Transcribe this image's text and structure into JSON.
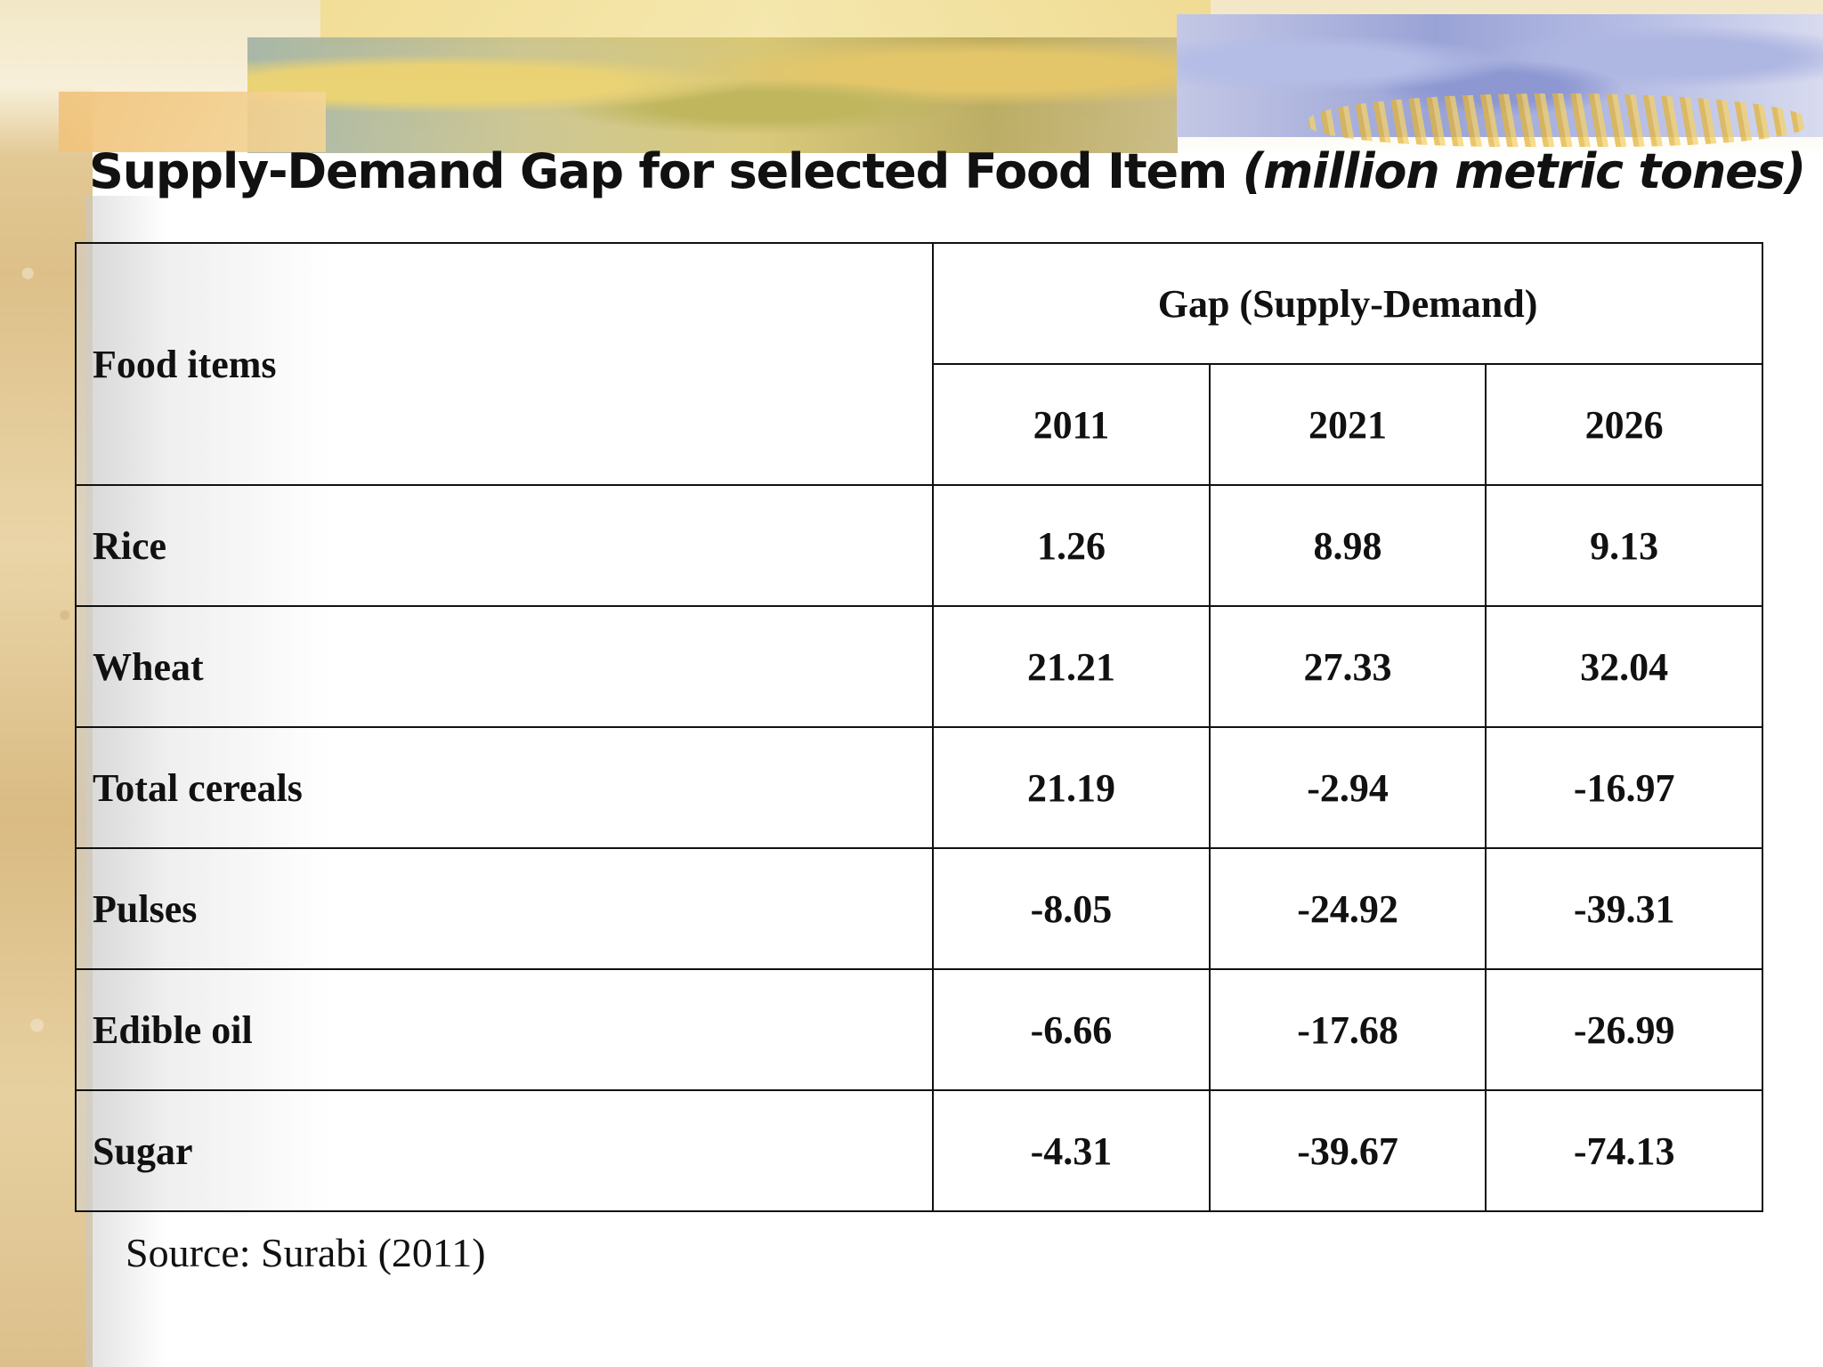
{
  "slide": {
    "title_main": "Supply-Demand Gap for selected Food Item",
    "title_unit": "(million metric tones)",
    "source": "Source: Surabi (2011)"
  },
  "table": {
    "header_item": "Food items",
    "header_group": "Gap (Supply-Demand)",
    "years": [
      "2011",
      "2021",
      "2026"
    ],
    "rows": [
      {
        "item": "Rice",
        "values": [
          "1.26",
          "8.98",
          "9.13"
        ]
      },
      {
        "item": "Wheat",
        "values": [
          "21.21",
          "27.33",
          "32.04"
        ]
      },
      {
        "item": "Total cereals",
        "values": [
          "21.19",
          "-2.94",
          "-16.97"
        ]
      },
      {
        "item": "Pulses",
        "values": [
          "-8.05",
          "-24.92",
          "-39.31"
        ]
      },
      {
        "item": "Edible oil",
        "values": [
          "-6.66",
          "-17.68",
          "-26.99"
        ]
      },
      {
        "item": "Sugar",
        "values": [
          "-4.31",
          "-39.67",
          "-74.13"
        ]
      }
    ]
  }
}
